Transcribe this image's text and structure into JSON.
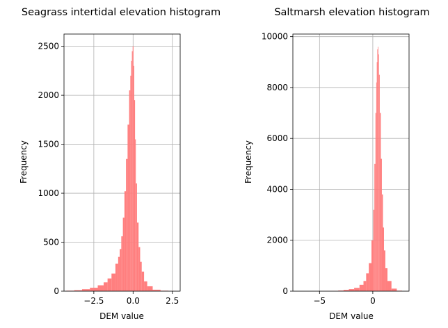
{
  "chart_data": [
    {
      "type": "bar",
      "title": "Seagrass intertidal elevation histogram",
      "xlabel": "DEM value",
      "ylabel": "Frequency",
      "xlim": [
        -4.4,
        3.0
      ],
      "ylim": [
        0,
        2625
      ],
      "xticks": [
        -2.5,
        0.0,
        2.5
      ],
      "xtick_labels": [
        "−2.5",
        "0.0",
        "2.5"
      ],
      "yticks": [
        0,
        500,
        1000,
        1500,
        2000,
        2500
      ],
      "ytick_labels": [
        "0",
        "500",
        "1000",
        "1500",
        "2000",
        "2500"
      ],
      "grid": true,
      "bar_color": "#ff7f7f",
      "x": [
        -4.0,
        -3.5,
        -3.0,
        -2.5,
        -2.0,
        -1.75,
        -1.5,
        -1.25,
        -1.0,
        -0.9,
        -0.8,
        -0.7,
        -0.6,
        -0.5,
        -0.4,
        -0.3,
        -0.2,
        -0.15,
        -0.1,
        -0.05,
        0.0,
        0.05,
        0.1,
        0.15,
        0.2,
        0.3,
        0.4,
        0.5,
        0.6,
        0.8,
        1.0,
        1.5,
        2.0,
        2.5
      ],
      "values": [
        5,
        10,
        20,
        35,
        60,
        90,
        130,
        180,
        280,
        350,
        430,
        560,
        750,
        1020,
        1350,
        1700,
        2050,
        2200,
        2350,
        2450,
        2500,
        2300,
        1950,
        1550,
        1100,
        700,
        450,
        300,
        200,
        100,
        50,
        15,
        5,
        2
      ]
    },
    {
      "type": "bar",
      "title": "Saltmarsh elevation histogram",
      "xlabel": "DEM value",
      "ylabel": "Frequency",
      "xlim": [
        -7.5,
        3.4
      ],
      "ylim": [
        0,
        10100
      ],
      "xticks": [
        -5,
        0
      ],
      "xtick_labels": [
        "−5",
        "0"
      ],
      "yticks": [
        0,
        2000,
        4000,
        6000,
        8000,
        10000
      ],
      "ytick_labels": [
        "0",
        "2000",
        "4000",
        "6000",
        "8000",
        "10000"
      ],
      "grid": true,
      "bar_color": "#ff7f7f",
      "x": [
        -5.0,
        -4.0,
        -3.5,
        -3.0,
        -2.5,
        -2.0,
        -1.5,
        -1.0,
        -0.75,
        -0.5,
        -0.25,
        0.0,
        0.1,
        0.2,
        0.3,
        0.35,
        0.4,
        0.45,
        0.5,
        0.55,
        0.6,
        0.7,
        0.8,
        0.9,
        1.0,
        1.1,
        1.25,
        1.5,
        2.0,
        2.5
      ],
      "values": [
        3,
        5,
        10,
        25,
        50,
        80,
        130,
        250,
        400,
        700,
        1100,
        2000,
        3200,
        5000,
        7000,
        8200,
        9000,
        9500,
        9600,
        9300,
        8500,
        7000,
        5200,
        3800,
        2500,
        1600,
        900,
        400,
        100,
        20
      ]
    }
  ]
}
